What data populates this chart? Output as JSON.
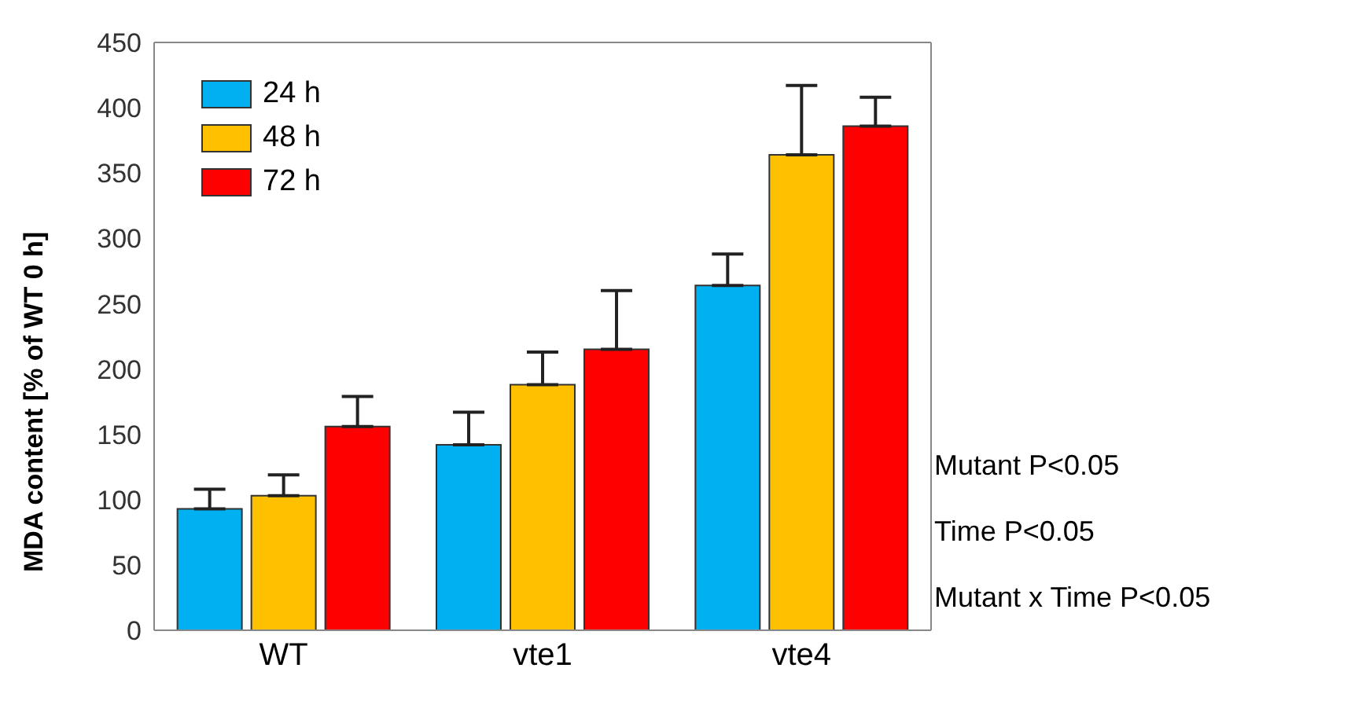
{
  "chart_data": {
    "type": "bar",
    "ylabel": "MDA content [% of  WT 0 h]",
    "categories": [
      "WT",
      "vte1",
      "vte4"
    ],
    "series": [
      {
        "name": "24 h",
        "color": "#00b0f0",
        "values": [
          93,
          142,
          264
        ],
        "errors": [
          [
            93,
            108
          ],
          [
            142,
            167
          ],
          [
            264,
            288
          ]
        ]
      },
      {
        "name": "48 h",
        "color": "#ffc000",
        "values": [
          103,
          188,
          364
        ],
        "errors": [
          [
            103,
            119
          ],
          [
            188,
            213
          ],
          [
            364,
            417
          ]
        ]
      },
      {
        "name": "72 h",
        "color": "#ff0000",
        "values": [
          156,
          215,
          386
        ],
        "errors": [
          [
            156,
            179
          ],
          [
            215,
            260
          ],
          [
            386,
            408
          ]
        ]
      }
    ],
    "ylim": [
      0,
      450
    ],
    "yticks": [
      0,
      50,
      100,
      150,
      200,
      250,
      300,
      350,
      400,
      450
    ],
    "grid": false,
    "legend": "top left",
    "annotations": [
      "Mutant P<0.05",
      "Time P<0.05",
      "Mutant x Time P<0.05"
    ]
  }
}
